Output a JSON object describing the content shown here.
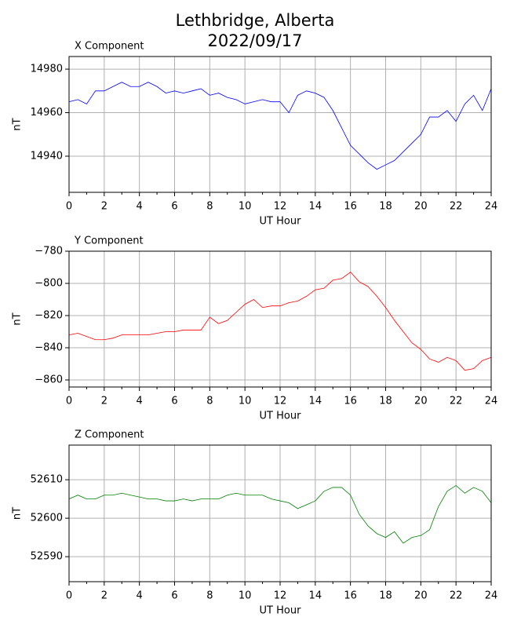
{
  "title": [
    "Lethbridge, Alberta",
    "2022/09/17"
  ],
  "chart_data": [
    {
      "type": "line",
      "title": "X Component",
      "xlabel": "UT Hour",
      "ylabel": "nT",
      "color": "#0000ff",
      "grid": true,
      "x": [
        0,
        0.5,
        1,
        1.5,
        2,
        2.5,
        3,
        3.5,
        4,
        4.5,
        5,
        5.5,
        6,
        6.5,
        7,
        7.5,
        8,
        8.5,
        9,
        9.5,
        10,
        10.5,
        11,
        11.5,
        12,
        12.5,
        13,
        13.5,
        14,
        14.5,
        15,
        15.5,
        16,
        16.5,
        17,
        17.5,
        18,
        18.5,
        19,
        19.5,
        20,
        20.5,
        21,
        21.5,
        22,
        22.5,
        23,
        23.5,
        24
      ],
      "values": [
        14965,
        14966,
        14964,
        14970,
        14970,
        14972,
        14974,
        14972,
        14972,
        14974,
        14972,
        14969,
        14970,
        14969,
        14970,
        14971,
        14968,
        14969,
        14967,
        14966,
        14964,
        14965,
        14966,
        14965,
        14965,
        14960,
        14968,
        14970,
        14969,
        14967,
        14961,
        14953,
        14945,
        14941,
        14937,
        14934,
        14936,
        14938,
        14942,
        14946,
        14950,
        14958,
        14958,
        14961,
        14956,
        14964,
        14968,
        14961,
        14971
      ],
      "xlim": [
        0,
        24
      ],
      "xticks": [
        0,
        2,
        4,
        6,
        8,
        10,
        12,
        14,
        16,
        18,
        20,
        22,
        24
      ],
      "xminorticks": [
        1,
        3,
        5,
        7,
        9,
        11,
        13,
        15,
        17,
        19,
        21,
        23
      ],
      "ylim": [
        14923.4,
        14985.8
      ],
      "yticks": [
        14940,
        14960,
        14980
      ]
    },
    {
      "type": "line",
      "title": "Y Component",
      "xlabel": "UT Hour",
      "ylabel": "nT",
      "color": "#ff0000",
      "grid": true,
      "x": [
        0,
        0.5,
        1,
        1.5,
        2,
        2.5,
        3,
        3.5,
        4,
        4.5,
        5,
        5.5,
        6,
        6.5,
        7,
        7.5,
        8,
        8.5,
        9,
        9.5,
        10,
        10.5,
        11,
        11.5,
        12,
        12.5,
        13,
        13.5,
        14,
        14.5,
        15,
        15.5,
        16,
        16.5,
        17,
        17.5,
        18,
        18.5,
        19,
        19.5,
        20,
        20.5,
        21,
        21.5,
        22,
        22.5,
        23,
        23.5,
        24
      ],
      "values": [
        -832,
        -831,
        -833,
        -835,
        -835,
        -834,
        -832,
        -832,
        -832,
        -832,
        -831,
        -830,
        -830,
        -829,
        -829,
        -829,
        -821,
        -825,
        -823,
        -818,
        -813,
        -810,
        -815,
        -814,
        -814,
        -812,
        -811,
        -808,
        -804,
        -803,
        -798,
        -797,
        -793,
        -799,
        -802,
        -808,
        -815,
        -823,
        -830,
        -837,
        -841,
        -847,
        -849,
        -846,
        -848,
        -854,
        -853,
        -848,
        -846
      ],
      "xlim": [
        0,
        24
      ],
      "xticks": [
        0,
        2,
        4,
        6,
        8,
        10,
        12,
        14,
        16,
        18,
        20,
        22,
        24
      ],
      "xminorticks": [
        1,
        3,
        5,
        7,
        9,
        11,
        13,
        15,
        17,
        19,
        21,
        23
      ],
      "ylim": [
        -864.4,
        -780
      ],
      "yticks": [
        {
          "value": -860,
          "label": "−860"
        },
        {
          "value": -840,
          "label": "−840"
        },
        {
          "value": -820,
          "label": "−820"
        },
        {
          "value": -800,
          "label": "−800"
        },
        {
          "value": -780,
          "label": "−780"
        }
      ]
    },
    {
      "type": "line",
      "title": "Z Component",
      "xlabel": "UT Hour",
      "ylabel": "nT",
      "color": "#008000",
      "grid": true,
      "x": [
        0,
        0.5,
        1,
        1.5,
        2,
        2.5,
        3,
        3.5,
        4,
        4.5,
        5,
        5.5,
        6,
        6.5,
        7,
        7.5,
        8,
        8.5,
        9,
        9.5,
        10,
        10.5,
        11,
        11.5,
        12,
        12.5,
        13,
        13.5,
        14,
        14.5,
        15,
        15.5,
        16,
        16.5,
        17,
        17.5,
        18,
        18.5,
        19,
        19.5,
        20,
        20.5,
        21,
        21.5,
        22,
        22.5,
        23,
        23.5,
        24
      ],
      "values": [
        52605,
        52606,
        52605,
        52605,
        52606,
        52606,
        52606.5,
        52606,
        52605.5,
        52605,
        52605,
        52604.5,
        52604.5,
        52605,
        52604.5,
        52605,
        52605,
        52605,
        52606,
        52606.5,
        52606,
        52606,
        52606,
        52605,
        52604.5,
        52604,
        52602.5,
        52603.5,
        52604.5,
        52607,
        52608,
        52608,
        52606,
        52601,
        52598,
        52596,
        52595,
        52596.5,
        52593.5,
        52595,
        52595.5,
        52597,
        52603,
        52607,
        52608.5,
        52606.5,
        52608,
        52607,
        52604
      ],
      "xlim": [
        0,
        24
      ],
      "xticks": [
        0,
        2,
        4,
        6,
        8,
        10,
        12,
        14,
        16,
        18,
        20,
        22,
        24
      ],
      "xminorticks": [
        1,
        3,
        5,
        7,
        9,
        11,
        13,
        15,
        17,
        19,
        21,
        23
      ],
      "ylim": [
        52583.5,
        52619
      ],
      "yticks": [
        52590,
        52600,
        52610
      ]
    }
  ]
}
